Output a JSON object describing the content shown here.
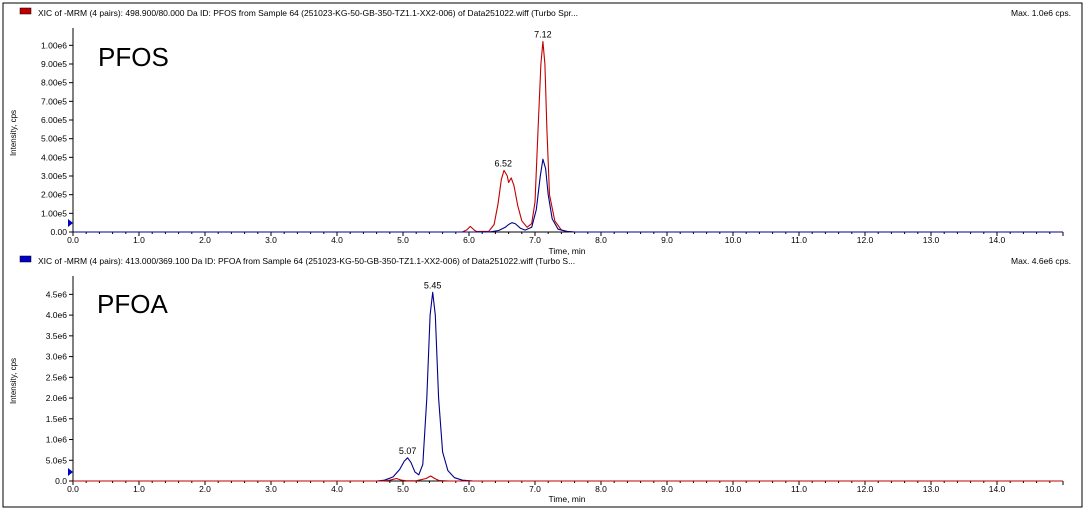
{
  "chart_data": [
    {
      "type": "line",
      "header": "XIC of -MRM (4 pairs): 498.900/80.000 Da ID: PFOS from Sample 64 (251023-KG-50-GB-350-TZ1.1-XX2-006) of Data251022.wiff (Turbo Spr...",
      "max_label": "Max. 1.0e6 cps.",
      "title": "PFOS",
      "xlabel": "Time, min",
      "ylabel": "Intensity, cps",
      "xlim": [
        0,
        15
      ],
      "ylim": [
        0,
        1050000
      ],
      "x_ticks": [
        "0.0",
        "1.0",
        "2.0",
        "3.0",
        "4.0",
        "5.0",
        "6.0",
        "7.0",
        "8.0",
        "9.0",
        "10.0",
        "11.0",
        "12.0",
        "13.0",
        "14.0"
      ],
      "y_ticks": [
        {
          "v": 0,
          "label": "0.00"
        },
        {
          "v": 100000,
          "label": "1.00e5"
        },
        {
          "v": 200000,
          "label": "2.00e5"
        },
        {
          "v": 300000,
          "label": "3.00e5"
        },
        {
          "v": 400000,
          "label": "4.00e5"
        },
        {
          "v": 500000,
          "label": "5.00e5"
        },
        {
          "v": 600000,
          "label": "6.00e5"
        },
        {
          "v": 700000,
          "label": "7.00e5"
        },
        {
          "v": 800000,
          "label": "8.00e5"
        },
        {
          "v": 900000,
          "label": "9.00e5"
        },
        {
          "v": 1000000,
          "label": "1.00e6"
        }
      ],
      "series": [
        {
          "color": "#c00000",
          "points": [
            [
              0,
              0
            ],
            [
              5.9,
              0
            ],
            [
              5.97,
              12000
            ],
            [
              6.02,
              30000
            ],
            [
              6.08,
              10000
            ],
            [
              6.12,
              2000
            ],
            [
              6.3,
              4000
            ],
            [
              6.38,
              40000
            ],
            [
              6.44,
              150000
            ],
            [
              6.49,
              280000
            ],
            [
              6.53,
              330000
            ],
            [
              6.58,
              300000
            ],
            [
              6.6,
              265000
            ],
            [
              6.64,
              290000
            ],
            [
              6.68,
              250000
            ],
            [
              6.74,
              140000
            ],
            [
              6.8,
              60000
            ],
            [
              6.88,
              25000
            ],
            [
              6.95,
              45000
            ],
            [
              7.0,
              160000
            ],
            [
              7.05,
              580000
            ],
            [
              7.09,
              900000
            ],
            [
              7.12,
              1020000
            ],
            [
              7.15,
              900000
            ],
            [
              7.18,
              550000
            ],
            [
              7.22,
              200000
            ],
            [
              7.3,
              60000
            ],
            [
              7.4,
              10000
            ],
            [
              7.5,
              2000
            ],
            [
              7.6,
              0
            ],
            [
              15,
              0
            ]
          ]
        },
        {
          "color": "#00008b",
          "points": [
            [
              0,
              0
            ],
            [
              6.3,
              0
            ],
            [
              6.45,
              8000
            ],
            [
              6.55,
              25000
            ],
            [
              6.6,
              40000
            ],
            [
              6.65,
              50000
            ],
            [
              6.7,
              45000
            ],
            [
              6.78,
              20000
            ],
            [
              6.85,
              10000
            ],
            [
              6.95,
              25000
            ],
            [
              7.02,
              120000
            ],
            [
              7.08,
              300000
            ],
            [
              7.12,
              390000
            ],
            [
              7.16,
              340000
            ],
            [
              7.2,
              200000
            ],
            [
              7.26,
              70000
            ],
            [
              7.35,
              15000
            ],
            [
              7.5,
              2000
            ],
            [
              7.6,
              0
            ],
            [
              15,
              0
            ]
          ]
        }
      ],
      "peak_labels": [
        {
          "x": 6.52,
          "y": 330000,
          "label": "6.52"
        },
        {
          "x": 7.12,
          "y": 1020000,
          "label": "7.12"
        }
      ]
    },
    {
      "type": "line",
      "header": "XIC of -MRM (4 pairs): 413.000/369.100 Da ID: PFOA from Sample 64 (251023-KG-50-GB-350-TZ1.1-XX2-006) of Data251022.wiff (Turbo S...",
      "max_label": "Max. 4.6e6 cps.",
      "title": "PFOA",
      "xlabel": "Time, min",
      "ylabel": "Intensity, cps",
      "xlim": [
        0,
        15
      ],
      "ylim": [
        0,
        4750000
      ],
      "x_ticks": [
        "0.0",
        "1.0",
        "2.0",
        "3.0",
        "4.0",
        "5.0",
        "6.0",
        "7.0",
        "8.0",
        "9.0",
        "10.0",
        "11.0",
        "12.0",
        "13.0",
        "14.0"
      ],
      "y_ticks": [
        {
          "v": 0,
          "label": "0.0"
        },
        {
          "v": 500000,
          "label": "5.0e5"
        },
        {
          "v": 1000000,
          "label": "1.0e6"
        },
        {
          "v": 1500000,
          "label": "1.5e6"
        },
        {
          "v": 2000000,
          "label": "2.0e6"
        },
        {
          "v": 2500000,
          "label": "2.5e6"
        },
        {
          "v": 3000000,
          "label": "3.0e6"
        },
        {
          "v": 3500000,
          "label": "3.5e6"
        },
        {
          "v": 4000000,
          "label": "4.0e6"
        },
        {
          "v": 4500000,
          "label": "4.5e6"
        }
      ],
      "series": [
        {
          "color": "#00008b",
          "points": [
            [
              0,
              0
            ],
            [
              4.6,
              0
            ],
            [
              4.72,
              20000
            ],
            [
              4.85,
              100000
            ],
            [
              4.95,
              280000
            ],
            [
              5.02,
              480000
            ],
            [
              5.07,
              560000
            ],
            [
              5.12,
              450000
            ],
            [
              5.18,
              220000
            ],
            [
              5.24,
              150000
            ],
            [
              5.3,
              400000
            ],
            [
              5.36,
              2000000
            ],
            [
              5.41,
              4000000
            ],
            [
              5.45,
              4550000
            ],
            [
              5.49,
              4000000
            ],
            [
              5.54,
              2000000
            ],
            [
              5.6,
              700000
            ],
            [
              5.68,
              250000
            ],
            [
              5.78,
              80000
            ],
            [
              5.9,
              20000
            ],
            [
              6.05,
              2000
            ],
            [
              6.2,
              0
            ],
            [
              15,
              0
            ]
          ]
        },
        {
          "color": "#c00000",
          "points": [
            [
              0,
              0
            ],
            [
              4.7,
              0
            ],
            [
              4.8,
              20000
            ],
            [
              4.9,
              60000
            ],
            [
              4.97,
              25000
            ],
            [
              5.05,
              5000
            ],
            [
              5.2,
              5000
            ],
            [
              5.35,
              60000
            ],
            [
              5.42,
              120000
            ],
            [
              5.48,
              60000
            ],
            [
              5.55,
              10000
            ],
            [
              5.7,
              0
            ],
            [
              15,
              0
            ]
          ]
        }
      ],
      "peak_labels": [
        {
          "x": 5.07,
          "y": 560000,
          "label": "5.07"
        },
        {
          "x": 5.45,
          "y": 4550000,
          "label": "5.45"
        }
      ]
    }
  ]
}
